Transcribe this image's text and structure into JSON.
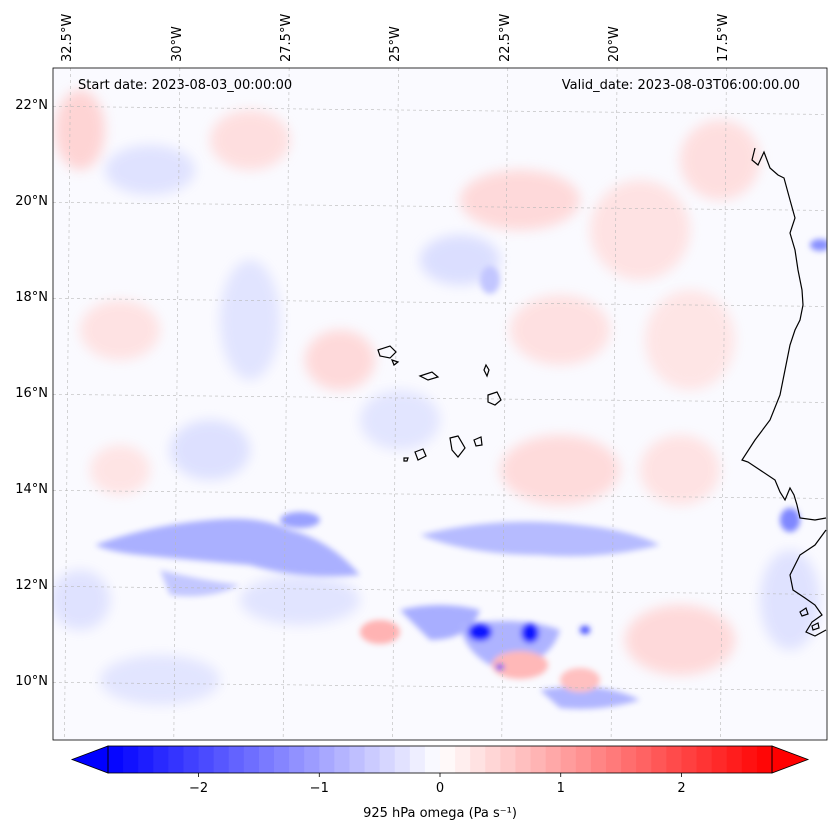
{
  "map": {
    "extent": {
      "lon_min": -32.9,
      "lon_max": -15.2,
      "lat_min": 8.8,
      "lat_max": 22.8
    },
    "lon_ticks": [
      {
        "value": -32.5,
        "label": "32.5°W"
      },
      {
        "value": -30.0,
        "label": "30°W"
      },
      {
        "value": -27.5,
        "label": "27.5°W"
      },
      {
        "value": -25.0,
        "label": "25°W"
      },
      {
        "value": -22.5,
        "label": "22.5°W"
      },
      {
        "value": -20.0,
        "label": "20°W"
      },
      {
        "value": -17.5,
        "label": "17.5°W"
      }
    ],
    "lat_ticks": [
      {
        "value": 22,
        "label": "22°N"
      },
      {
        "value": 20,
        "label": "20°N"
      },
      {
        "value": 18,
        "label": "18°N"
      },
      {
        "value": 16,
        "label": "16°N"
      },
      {
        "value": 14,
        "label": "14°N"
      },
      {
        "value": 12,
        "label": "12°N"
      },
      {
        "value": 10,
        "label": "10°N"
      }
    ],
    "start_date_text": "Start date: 2023-08-03_00:00:00",
    "valid_date_text": "Valid_date: 2023-08-03T06:00:00.00",
    "gridlines": "dashed",
    "field_colors": {
      "negative": "#0000ff",
      "zero": "#ffffff",
      "positive": "#ff0000"
    }
  },
  "colorbar": {
    "label": "925 hPa omega (Pa s⁻¹)",
    "vmin": -2.75,
    "vmax": 2.75,
    "ticks": [
      {
        "value": -2,
        "label": "−2"
      },
      {
        "value": -1,
        "label": "−1"
      },
      {
        "value": 0,
        "label": "0"
      },
      {
        "value": 1,
        "label": "1"
      },
      {
        "value": 2,
        "label": "2"
      }
    ],
    "extend": "both"
  }
}
